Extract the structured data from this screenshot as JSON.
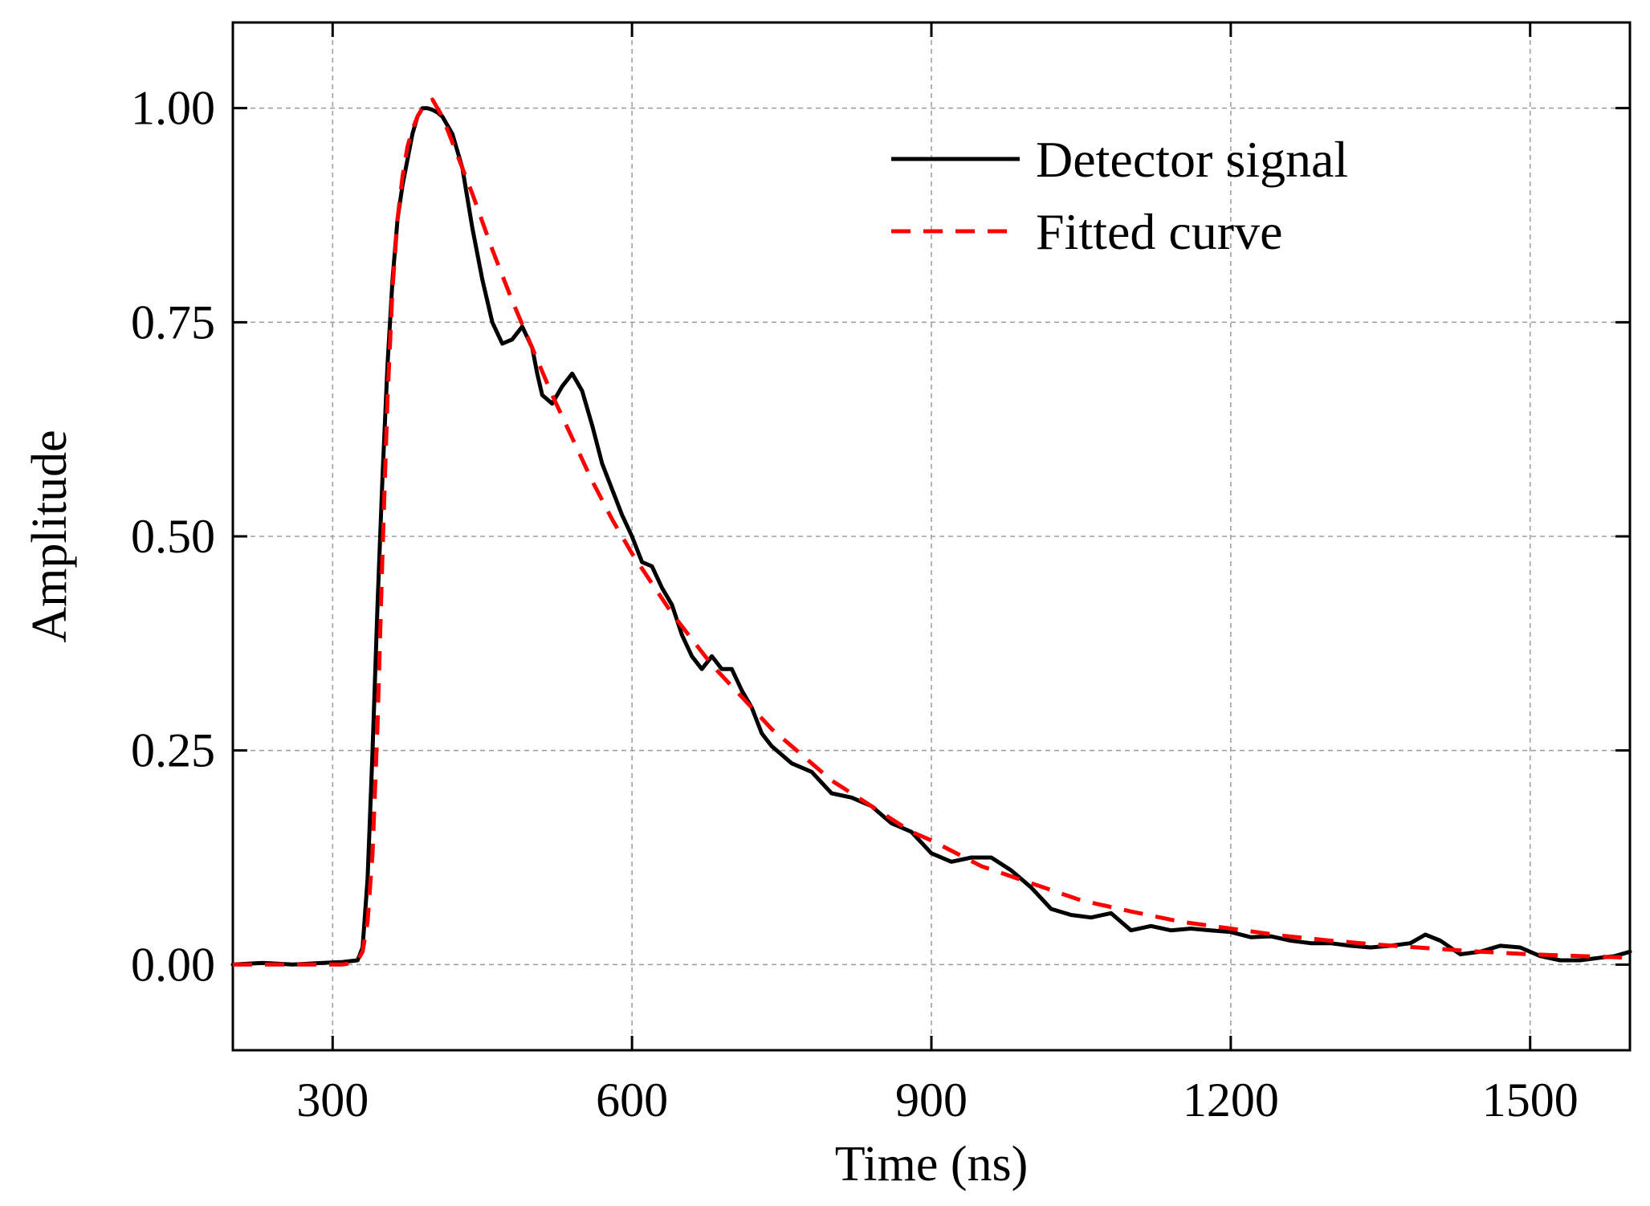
{
  "chart_data": {
    "type": "line",
    "title": "",
    "xlabel": "Time (ns)",
    "ylabel": "Amplitude",
    "xlim": [
      200,
      1600
    ],
    "ylim": [
      -0.1,
      1.1
    ],
    "xticks": [
      300,
      600,
      900,
      1200,
      1500
    ],
    "yticks": [
      0.0,
      0.25,
      0.5,
      0.75,
      1.0
    ],
    "xtick_labels": [
      "300",
      "600",
      "900",
      "1200",
      "1500"
    ],
    "ytick_labels": [
      "0.00",
      "0.25",
      "0.50",
      "0.75",
      "1.00"
    ],
    "grid": true,
    "legend_position": "top-right",
    "series": [
      {
        "name": "Detector signal",
        "color": "#000000",
        "style": "solid",
        "x": [
          200,
          230,
          260,
          290,
          310,
          325,
          330,
          335,
          340,
          345,
          350,
          355,
          360,
          365,
          370,
          375,
          380,
          385,
          390,
          395,
          400,
          405,
          410,
          420,
          430,
          440,
          450,
          460,
          470,
          480,
          490,
          500,
          505,
          510,
          520,
          530,
          540,
          550,
          560,
          570,
          580,
          590,
          600,
          610,
          620,
          630,
          640,
          650,
          660,
          670,
          680,
          690,
          700,
          710,
          720,
          730,
          740,
          750,
          760,
          780,
          800,
          820,
          840,
          860,
          880,
          900,
          920,
          940,
          960,
          980,
          1000,
          1020,
          1040,
          1060,
          1080,
          1100,
          1120,
          1140,
          1160,
          1180,
          1200,
          1220,
          1240,
          1260,
          1280,
          1300,
          1320,
          1340,
          1360,
          1380,
          1395,
          1410,
          1430,
          1450,
          1470,
          1490,
          1510,
          1530,
          1550,
          1570,
          1585,
          1600
        ],
        "y": [
          0.0,
          0.002,
          0.0,
          0.002,
          0.003,
          0.005,
          0.02,
          0.1,
          0.25,
          0.42,
          0.57,
          0.7,
          0.8,
          0.87,
          0.91,
          0.94,
          0.97,
          0.99,
          1.0,
          1.0,
          0.998,
          0.995,
          0.99,
          0.97,
          0.93,
          0.86,
          0.8,
          0.75,
          0.725,
          0.73,
          0.745,
          0.72,
          0.69,
          0.665,
          0.655,
          0.675,
          0.69,
          0.67,
          0.63,
          0.585,
          0.555,
          0.525,
          0.5,
          0.47,
          0.465,
          0.44,
          0.42,
          0.385,
          0.36,
          0.345,
          0.36,
          0.345,
          0.345,
          0.32,
          0.3,
          0.27,
          0.255,
          0.245,
          0.235,
          0.225,
          0.2,
          0.195,
          0.185,
          0.165,
          0.155,
          0.13,
          0.12,
          0.125,
          0.125,
          0.11,
          0.09,
          0.065,
          0.058,
          0.055,
          0.06,
          0.04,
          0.045,
          0.04,
          0.042,
          0.04,
          0.038,
          0.032,
          0.033,
          0.028,
          0.025,
          0.025,
          0.022,
          0.02,
          0.022,
          0.025,
          0.035,
          0.028,
          0.012,
          0.015,
          0.022,
          0.02,
          0.01,
          0.005,
          0.005,
          0.008,
          0.01,
          0.015
        ]
      },
      {
        "name": "Fitted curve",
        "color": "#ff0000",
        "style": "dashed",
        "x": [
          200,
          220,
          240,
          260,
          280,
          300,
          310,
          320,
          325,
          330,
          335,
          340,
          345,
          350,
          355,
          360,
          365,
          370,
          375,
          380,
          385,
          390,
          395,
          400,
          410,
          420,
          440,
          460,
          480,
          500,
          520,
          540,
          560,
          580,
          600,
          620,
          640,
          660,
          680,
          700,
          720,
          740,
          760,
          780,
          800,
          820,
          840,
          860,
          880,
          900,
          950,
          1000,
          1050,
          1100,
          1150,
          1200,
          1250,
          1300,
          1350,
          1400,
          1450,
          1500,
          1550,
          1600
        ],
        "y": [
          0.0,
          0.0,
          0.0,
          0.0,
          0.0,
          0.0,
          0.0,
          0.002,
          0.005,
          0.015,
          0.05,
          0.13,
          0.28,
          0.48,
          0.66,
          0.79,
          0.87,
          0.92,
          0.955,
          0.975,
          0.99,
          1.0,
          1.005,
          1.01,
          0.99,
          0.96,
          0.9,
          0.835,
          0.775,
          0.72,
          0.665,
          0.615,
          0.565,
          0.52,
          0.48,
          0.445,
          0.41,
          0.38,
          0.35,
          0.325,
          0.3,
          0.275,
          0.255,
          0.235,
          0.215,
          0.2,
          0.185,
          0.17,
          0.155,
          0.145,
          0.115,
          0.095,
          0.075,
          0.062,
          0.05,
          0.042,
          0.034,
          0.028,
          0.023,
          0.019,
          0.015,
          0.012,
          0.01,
          0.008
        ]
      }
    ]
  }
}
